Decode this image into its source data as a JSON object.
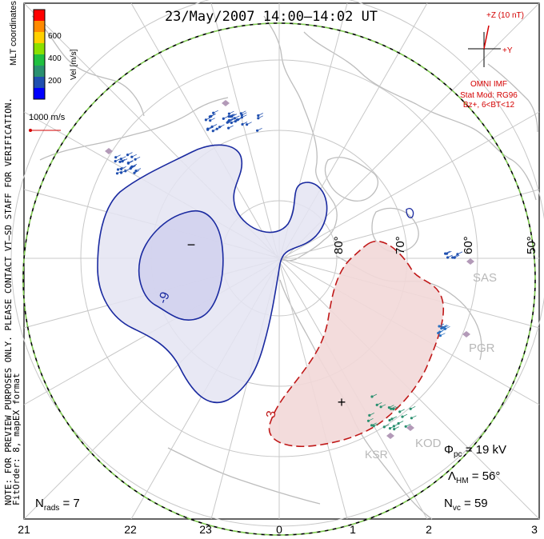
{
  "title": "23/May/2007 14:00–14:02 UT",
  "coordinates_label": "MLT coordinates",
  "colorbar": {
    "label": "Vel [m/s]",
    "ticks": [
      "600",
      "400",
      "200"
    ],
    "colors": [
      "#ff0000",
      "#ff8a00",
      "#ffd000",
      "#8be000",
      "#20c040",
      "#2a9070",
      "#2050b0",
      "#0000ff"
    ]
  },
  "scale_vector": {
    "label": "1000 m/s",
    "color": "#d40000"
  },
  "notice": "NOTE: FOR PREVIEW PURPOSES ONLY. PLEASE CONTACT VT–SD STAFF FOR VERIFICATION.",
  "fit_order": "FitOrder: 8, mapEX format",
  "imf": {
    "z_label": "+Z (10 nT)",
    "y_label": "+Y",
    "source": "OMNI IMF",
    "stat_mod": "Stat Mod: RG96",
    "condition": "Bz+, 6<BT<12",
    "color": "#d40000"
  },
  "latitude_labels": [
    "80°",
    "70°",
    "60°",
    "50°"
  ],
  "mlt_labels": [
    "21",
    "22",
    "23",
    "0",
    "1",
    "2",
    "3"
  ],
  "stations": [
    "SAS",
    "PGR",
    "KOD",
    "KSR"
  ],
  "contour_labels": {
    "neg_value": "-9",
    "pos_value": "3",
    "min_marker": "−",
    "max_marker": "+"
  },
  "stats": {
    "n_rads": {
      "symbol": "N",
      "sub": "rads",
      "value": "7"
    },
    "phi_pc": {
      "symbol": "Φ",
      "sub": "pc",
      "value": "19 kV"
    },
    "lambda_hm": {
      "symbol": "Λ",
      "sub": "HM",
      "value": "56°"
    },
    "n_vc": {
      "symbol": "N",
      "sub": "vc",
      "value": "59"
    }
  },
  "colors": {
    "negative_cell_fill": "#e4e4f2",
    "negative_core_fill": "#d2d2ee",
    "positive_cell_fill": "#f2d8d8",
    "negative_contour": "#1a2aa0",
    "positive_contour": "#c01818",
    "coastline": "#bdbdbd",
    "grid": "#c8c8c8",
    "boundary_dash": "#7ec850"
  }
}
